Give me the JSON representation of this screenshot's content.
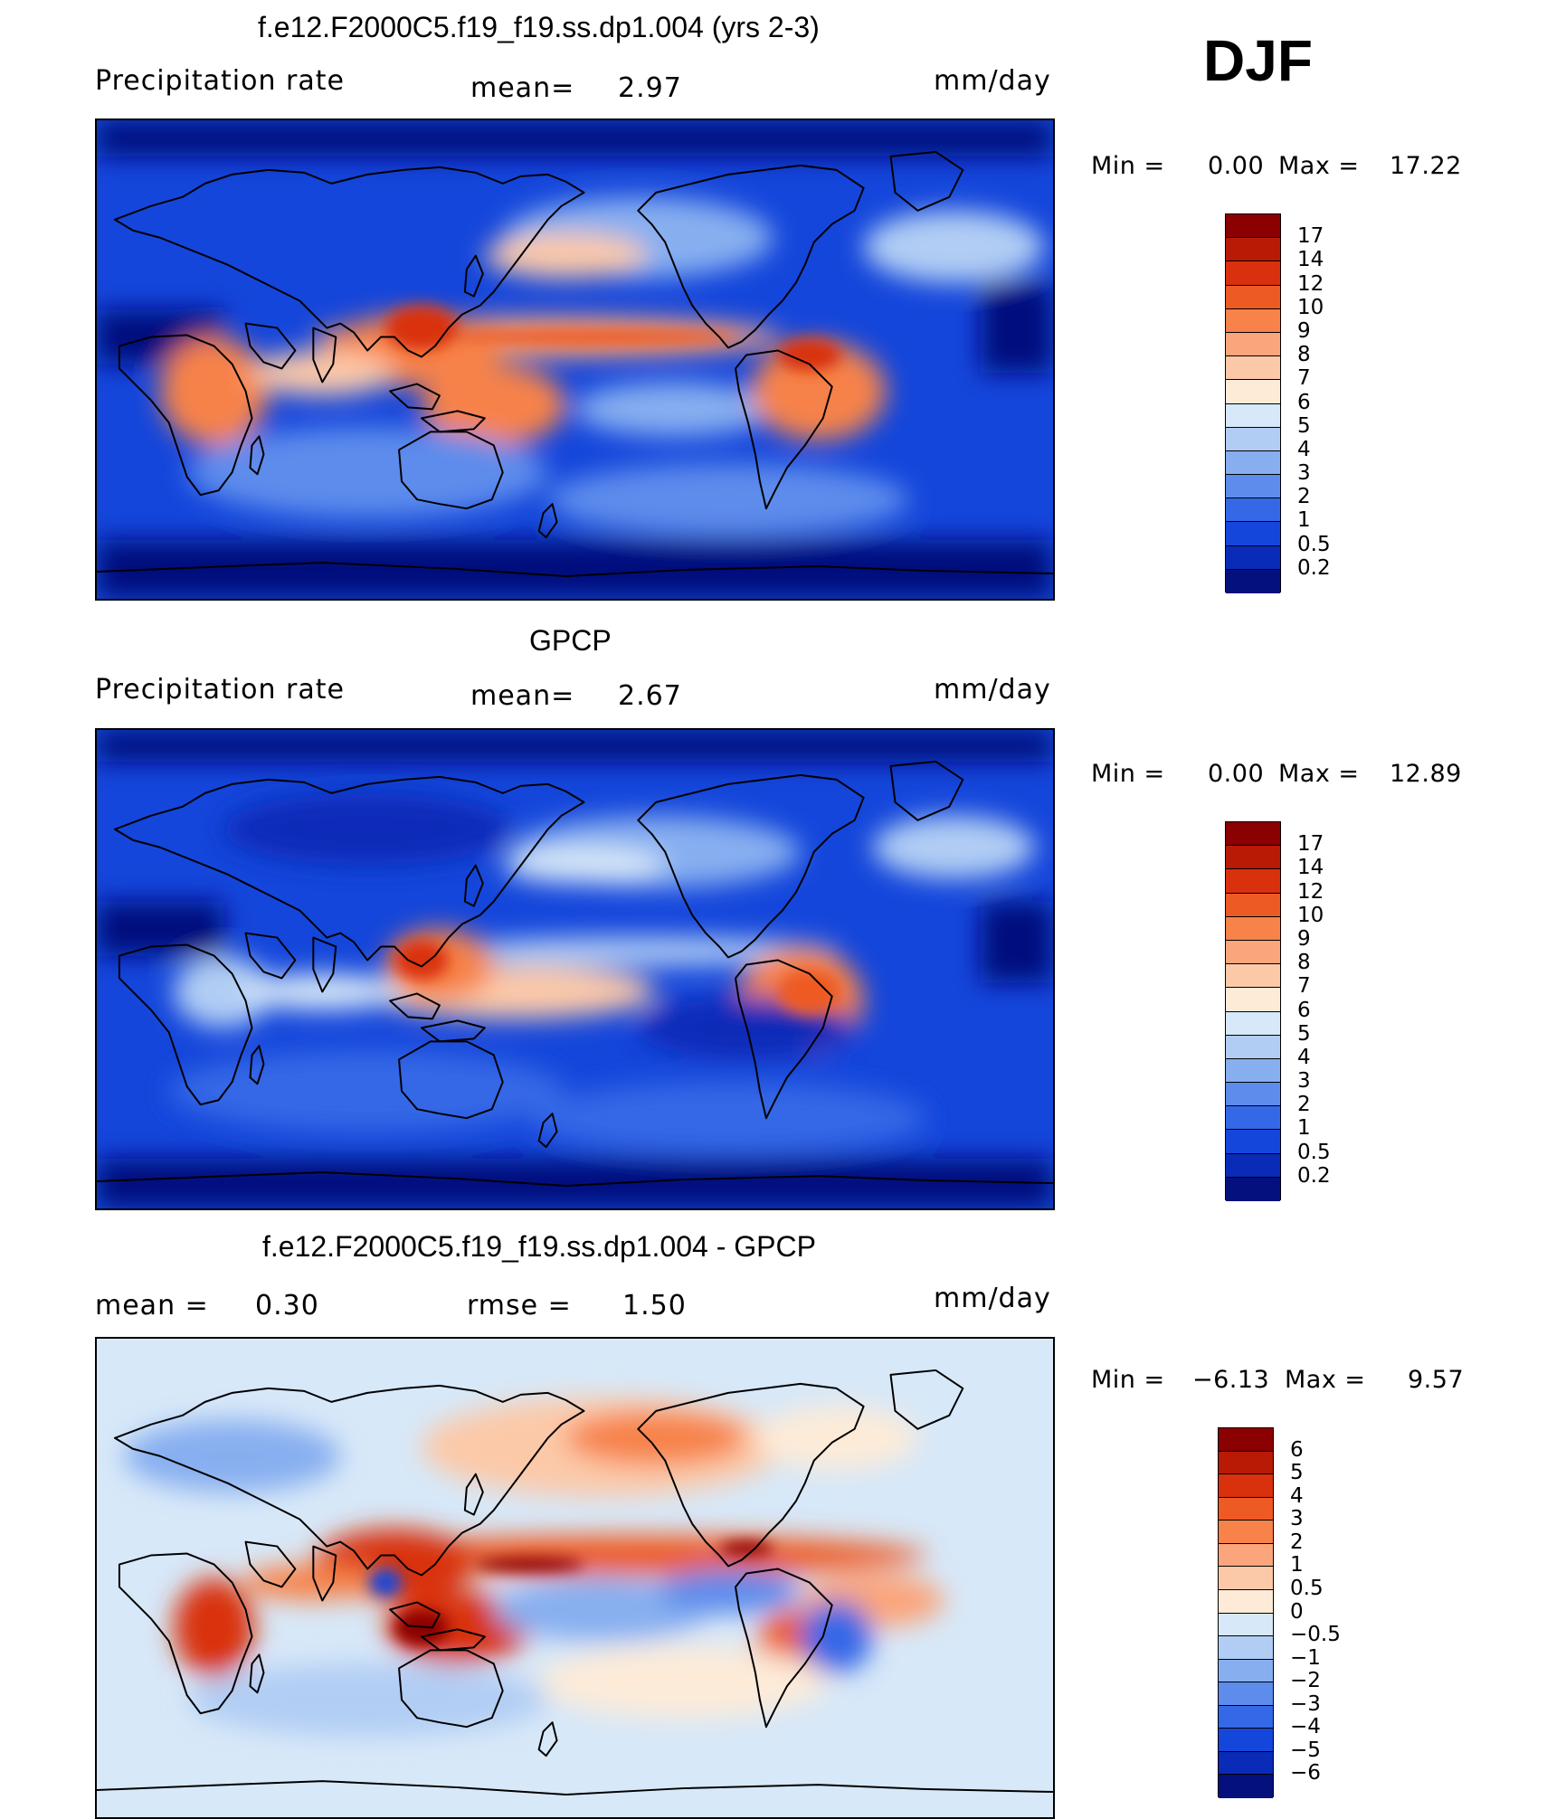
{
  "season": "DJF",
  "panels": [
    {
      "title": "f.e12.F2000C5.f19_f19.ss.dp1.004 (yrs 2-3)",
      "left_label": "Precipitation  rate",
      "mid_label": "mean=",
      "mid_value": "2.97",
      "units": "mm/day",
      "min_label": "Min  =",
      "min_value": "0.00",
      "max_label": "Max  =",
      "max_value": "17.22",
      "colorbar": {
        "labels": [
          "17",
          "14",
          "12",
          "10",
          "9",
          "8",
          "7",
          "6",
          "5",
          "4",
          "3",
          "2",
          "1",
          "0.5",
          "0.2"
        ],
        "colors": [
          "#8b0000",
          "#b81a06",
          "#d9300e",
          "#ee5a24",
          "#f7824a",
          "#fba57c",
          "#fcc9a8",
          "#fdebd8",
          "#d7e8f8",
          "#b1cdf4",
          "#87aff0",
          "#5d8cec",
          "#3468e6",
          "#1446db",
          "#0a2bb8",
          "#03107d"
        ]
      }
    },
    {
      "title": "GPCP",
      "left_label": "Precipitation  rate",
      "mid_label": "mean=",
      "mid_value": "2.67",
      "units": "mm/day",
      "min_label": "Min  =",
      "min_value": "0.00",
      "max_label": "Max  =",
      "max_value": "12.89",
      "colorbar": {
        "labels": [
          "17",
          "14",
          "12",
          "10",
          "9",
          "8",
          "7",
          "6",
          "5",
          "4",
          "3",
          "2",
          "1",
          "0.5",
          "0.2"
        ],
        "colors": [
          "#8b0000",
          "#b81a06",
          "#d9300e",
          "#ee5a24",
          "#f7824a",
          "#fba57c",
          "#fcc9a8",
          "#fdebd8",
          "#d7e8f8",
          "#b1cdf4",
          "#87aff0",
          "#5d8cec",
          "#3468e6",
          "#1446db",
          "#0a2bb8",
          "#03107d"
        ]
      }
    },
    {
      "title": "f.e12.F2000C5.f19_f19.ss.dp1.004 - GPCP",
      "left_label": "mean  =",
      "left_value": "0.30",
      "mid_label": "rmse  =",
      "mid_value": "1.50",
      "units": "mm/day",
      "min_label": "Min  =",
      "min_value": "−6.13",
      "max_label": "Max  =",
      "max_value": "9.57",
      "colorbar": {
        "labels": [
          "6",
          "5",
          "4",
          "3",
          "2",
          "1",
          "0.5",
          "0",
          "−0.5",
          "−1",
          "−2",
          "−3",
          "−4",
          "−5",
          "−6"
        ],
        "colors": [
          "#8b0000",
          "#b81a06",
          "#d9300e",
          "#ee5a24",
          "#f7824a",
          "#fba57c",
          "#fcc9a8",
          "#fdebd8",
          "#d7e8f8",
          "#b1cdf4",
          "#87aff0",
          "#5d8cec",
          "#3468e6",
          "#1446db",
          "#0a2bb8",
          "#03107d"
        ]
      }
    }
  ]
}
